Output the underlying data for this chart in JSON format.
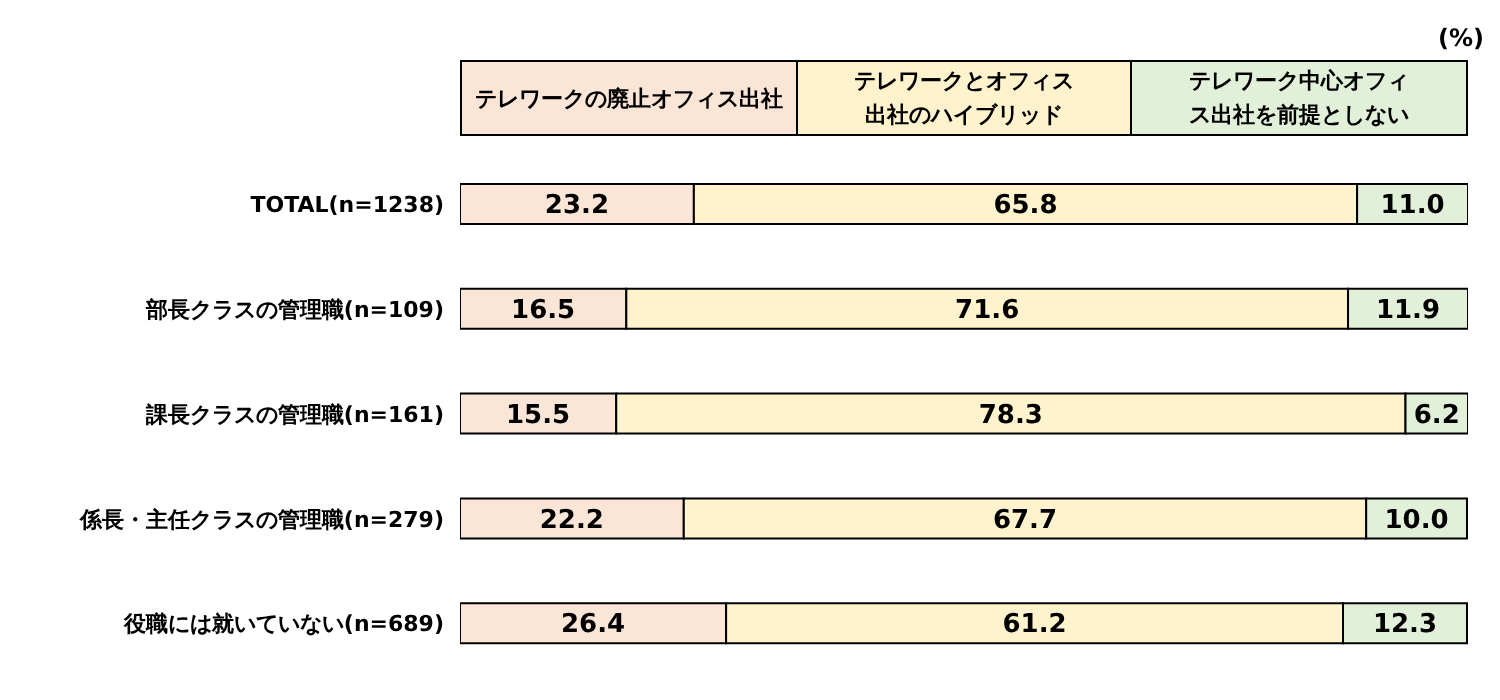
{
  "chart_data": {
    "type": "bar",
    "orientation": "horizontal",
    "stacked": true,
    "legend": "top",
    "annotations": [
      "(%)"
    ],
    "categories": [
      "TOTAL(n=1238)",
      "部長クラスの管理職(n=109)",
      "課長クラスの管理職(n=161)",
      "係長・主任クラスの管理職(n=279)",
      "役職には就いていない(n=689)"
    ],
    "series": [
      {
        "name": "テレワークの廃止オフィス出社",
        "color": "#fbe5d6",
        "values": [
          23.2,
          16.5,
          15.5,
          22.2,
          26.4
        ],
        "value_labels": [
          "23.2",
          "16.5",
          "15.5",
          "22.2",
          "26.4"
        ]
      },
      {
        "name": "テレワークとオフィス出社のハイブリッド",
        "color": "#fff2cc",
        "values": [
          65.8,
          71.6,
          78.3,
          67.7,
          61.2
        ],
        "value_labels": [
          "65.8",
          "71.6",
          "78.3",
          "67.7",
          "61.2"
        ]
      },
      {
        "name": "テレワーク中心オフィス出社を前提としない",
        "color": "#e2f0d9",
        "values": [
          11.0,
          11.9,
          6.2,
          10.0,
          12.3
        ],
        "value_labels": [
          "11.0",
          "11.9",
          "6.2",
          "10.0",
          "12.3"
        ]
      }
    ]
  }
}
